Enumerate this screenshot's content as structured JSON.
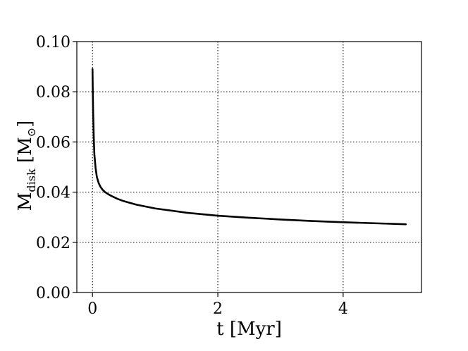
{
  "chart_data": {
    "type": "line",
    "title": "",
    "xlabel": {
      "base": "t [Myr]"
    },
    "ylabel": {
      "base": "M",
      "sub": "disk",
      "unit_open": " [M",
      "unit_symbol": "⊙",
      "unit_close": "]"
    },
    "xlim": [
      -0.25,
      5.25
    ],
    "ylim": [
      0.0,
      0.1
    ],
    "x_ticks": [
      0,
      2,
      4
    ],
    "x_tick_labels": [
      "0",
      "2",
      "4"
    ],
    "y_ticks": [
      0.0,
      0.02,
      0.04,
      0.06,
      0.08,
      0.1
    ],
    "y_tick_labels": [
      "0.00",
      "0.02",
      "0.04",
      "0.06",
      "0.08",
      "0.10"
    ],
    "grid": true,
    "series": [
      {
        "color": "#000000",
        "x": [
          0.0,
          0.005,
          0.01,
          0.02,
          0.03,
          0.05,
          0.07,
          0.1,
          0.13,
          0.16,
          0.2,
          0.25,
          0.3,
          0.4,
          0.5,
          0.7,
          1.0,
          1.5,
          2.0,
          2.5,
          3.0,
          3.5,
          4.0,
          4.5,
          5.0
        ],
        "y": [
          0.089,
          0.08,
          0.072,
          0.062,
          0.055,
          0.0495,
          0.046,
          0.0435,
          0.042,
          0.041,
          0.04,
          0.0392,
          0.0385,
          0.0373,
          0.0364,
          0.035,
          0.0335,
          0.0318,
          0.0306,
          0.0298,
          0.0291,
          0.0285,
          0.028,
          0.0276,
          0.0272
        ]
      }
    ]
  }
}
